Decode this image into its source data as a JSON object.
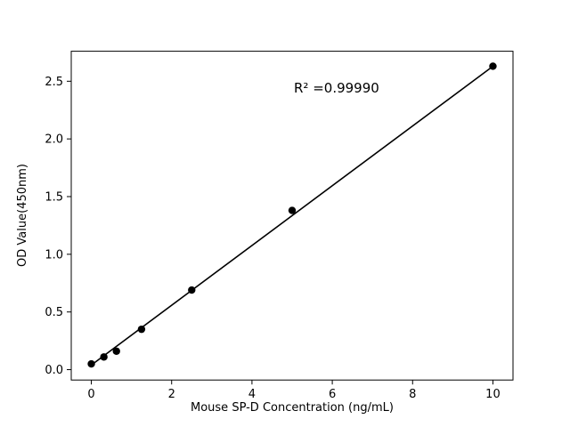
{
  "figure": {
    "background": "#ffffff"
  },
  "chart_data": {
    "type": "scatter",
    "title": "",
    "xlabel": "Mouse SP-D Concentration (ng/mL)",
    "ylabel": "OD Value(450nm)",
    "annotation": "R² =0.99990",
    "x": [
      0,
      0.3125,
      0.625,
      1.25,
      2.5,
      5,
      10
    ],
    "y": [
      0.05,
      0.11,
      0.16,
      0.35,
      0.69,
      1.38,
      2.63
    ],
    "fit_line": {
      "x": [
        0,
        10
      ],
      "y": [
        0.04,
        2.63
      ]
    },
    "xlim": [
      -0.5,
      10.5
    ],
    "ylim": [
      -0.09,
      2.76
    ],
    "xticks": [
      0,
      2,
      4,
      6,
      8,
      10
    ],
    "xtick_labels": [
      "0",
      "2",
      "4",
      "6",
      "8",
      "10"
    ],
    "yticks": [
      0.0,
      0.5,
      1.0,
      1.5,
      2.0,
      2.5
    ],
    "ytick_labels": [
      "0.0",
      "0.5",
      "1.0",
      "1.5",
      "2.0",
      "2.5"
    ],
    "grid": false,
    "legend_position": "none",
    "marker_color": "#000000",
    "line_color": "#000000",
    "axis_color": "#000000"
  }
}
